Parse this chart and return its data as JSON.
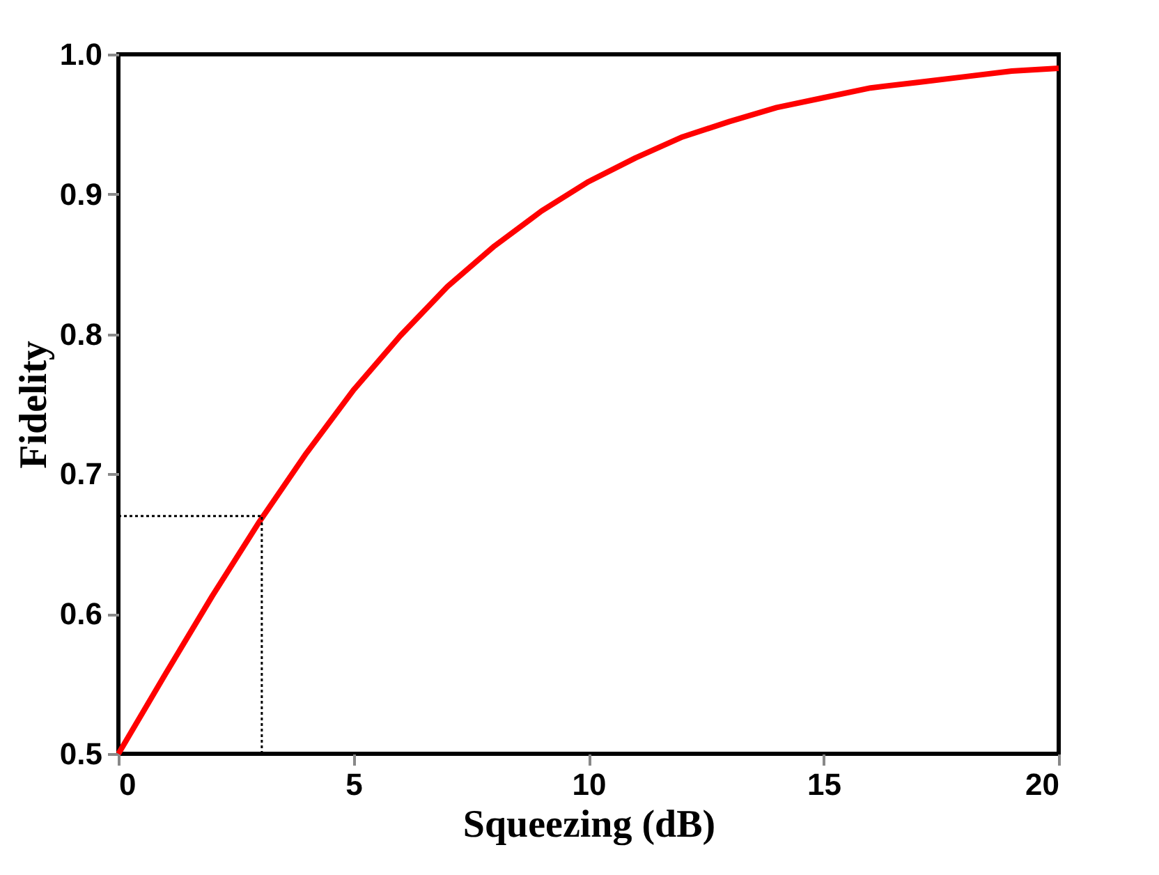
{
  "chart_data": {
    "type": "line",
    "xlabel": "Squeezing (dB)",
    "ylabel": "Fidelity",
    "x": [
      0,
      1,
      2,
      3,
      4,
      5,
      6,
      7,
      8,
      9,
      10,
      11,
      12,
      13,
      14,
      15,
      16,
      17,
      18,
      19,
      20
    ],
    "series": [
      {
        "color": "#ff0000",
        "values": [
          0.5,
          0.557,
          0.613,
          0.666,
          0.715,
          0.76,
          0.799,
          0.834,
          0.863,
          0.888,
          0.909,
          0.926,
          0.941,
          0.952,
          0.962,
          0.969,
          0.976,
          0.98,
          0.984,
          0.988,
          0.99
        ]
      }
    ],
    "xlim": [
      0,
      20
    ],
    "xticks": [
      0,
      5,
      10,
      15,
      20
    ],
    "ylim": [
      0.5,
      1.0
    ],
    "yticks": [
      0.5,
      0.6,
      0.7,
      0.8,
      0.9,
      {
        "value": 1.0,
        "label": "1.0"
      }
    ],
    "ref_lines": [
      {
        "axis": "x",
        "value": 3.05,
        "color": "#000000",
        "line_style": "dotted"
      },
      {
        "axis": "y",
        "value": 0.67,
        "color": "#000000",
        "line_style": "dotted"
      }
    ],
    "grid": false,
    "marker": "none",
    "line_style": "solid"
  }
}
